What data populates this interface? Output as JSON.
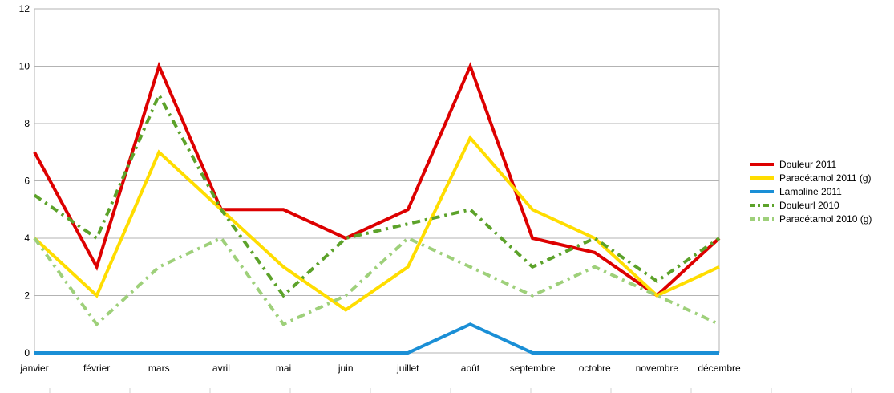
{
  "chart_data": {
    "type": "line",
    "categories": [
      "janvier",
      "février",
      "mars",
      "avril",
      "mai",
      "juin",
      "juillet",
      "août",
      "septembre",
      "octobre",
      "novembre",
      "décembre"
    ],
    "ylim": [
      0,
      12
    ],
    "yticks": [
      "0",
      "2",
      "4",
      "6",
      "8",
      "10",
      "12"
    ],
    "grid": true,
    "legend_position": "right",
    "series": [
      {
        "name": "Douleur 2011",
        "color": "#dd0000",
        "style": "solid",
        "values": [
          7,
          3,
          10,
          5,
          5,
          4,
          5,
          10,
          4,
          3.5,
          2,
          4
        ]
      },
      {
        "name": "Paracétamol 2011 (g)",
        "color": "#ffdd00",
        "style": "solid",
        "values": [
          4,
          2,
          7,
          5,
          3,
          1.5,
          3,
          7.5,
          5,
          4,
          2,
          3
        ]
      },
      {
        "name": "Lamaline 2011",
        "color": "#1a8fd6",
        "style": "solid",
        "values": [
          0,
          0,
          0,
          0,
          0,
          0,
          0,
          1,
          0,
          0,
          0,
          0
        ]
      },
      {
        "name": "Douleurl 2010",
        "color": "#5ca22a",
        "style": "dashdot",
        "values": [
          5.5,
          4,
          9,
          5,
          2,
          4,
          4.5,
          5,
          3,
          4,
          2.5,
          4
        ]
      },
      {
        "name": "Paracétamol 2010 (g)",
        "color": "#9ed07a",
        "style": "dashdot",
        "values": [
          4,
          1,
          3,
          4,
          1,
          2,
          4,
          3,
          2,
          3,
          2,
          1
        ]
      }
    ]
  }
}
